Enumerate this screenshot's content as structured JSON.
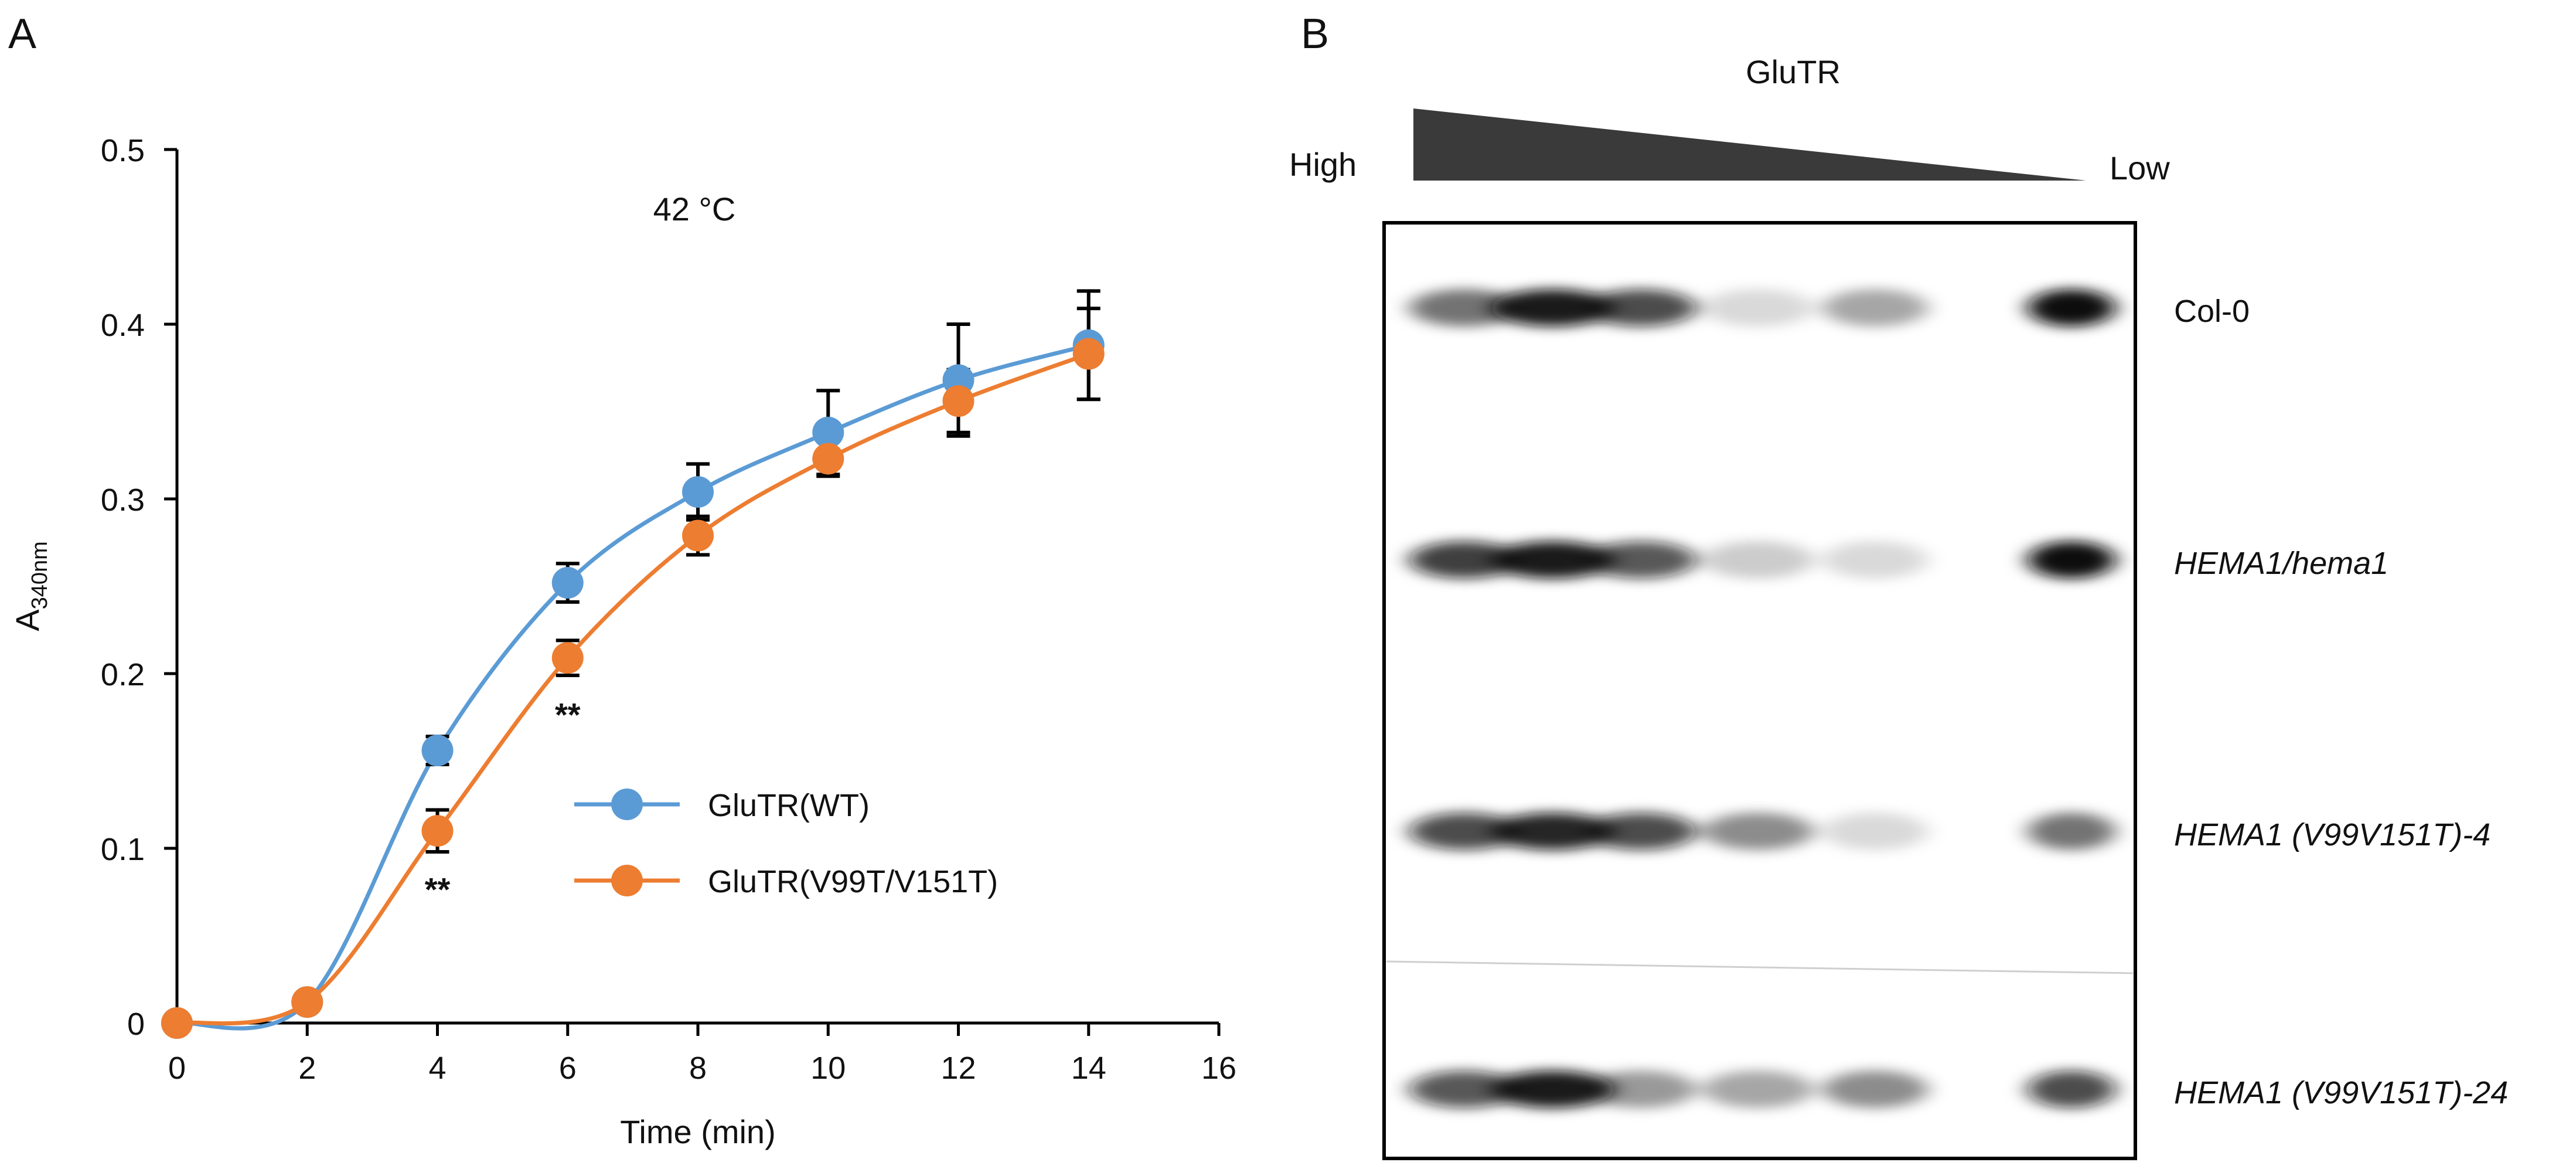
{
  "panels": {
    "a_label": "A",
    "b_label": "B"
  },
  "colors": {
    "wt": "#5b9bd5",
    "mut": "#ed7d31",
    "axis": "#000000",
    "gel_band": "#0a0a0a"
  },
  "chart_data": {
    "type": "line",
    "title": "42 °C",
    "xlabel": "Time (min)",
    "ylabel_main": "A",
    "ylabel_sub": "340nm",
    "xlim": [
      0,
      16
    ],
    "ylim": [
      0,
      0.5
    ],
    "xticks": [
      "0",
      "2",
      "4",
      "6",
      "8",
      "10",
      "12",
      "14",
      "16"
    ],
    "yticks": [
      "0",
      "0.1",
      "0.2",
      "0.3",
      "0.4",
      "0.5"
    ],
    "grid": false,
    "legend_position": "center-right",
    "x": [
      0,
      2,
      4,
      6,
      8,
      10,
      12,
      14
    ],
    "series": [
      {
        "name": "GluTR(WT)",
        "color": "#5b9bd5",
        "values": [
          0.0,
          0.012,
          0.156,
          0.252,
          0.304,
          0.338,
          0.368,
          0.388
        ],
        "errors": [
          0,
          0,
          0.008,
          0.011,
          0.016,
          0.024,
          0.032,
          0.031
        ]
      },
      {
        "name": "GluTR(V99T/V151T)",
        "color": "#ed7d31",
        "values": [
          0.0,
          0.012,
          0.11,
          0.209,
          0.279,
          0.323,
          0.356,
          0.383
        ],
        "errors": [
          0,
          0,
          0.012,
          0.01,
          0.011,
          0.01,
          0.018,
          0.026
        ]
      }
    ],
    "annotations": [
      {
        "text": "**",
        "x": 6,
        "y": 0.17
      },
      {
        "text": "**",
        "x": 4,
        "y": 0.07
      }
    ]
  },
  "gel": {
    "gradient_label": "GluTR",
    "high_label": "High",
    "low_label": "Low",
    "rows": [
      {
        "label": "Col-0",
        "italic": false,
        "intensities": [
          0.55,
          0.95,
          0.75,
          0.15,
          0.35,
          1.0
        ]
      },
      {
        "label": "HEMA1/hema1",
        "italic": true,
        "intensities": [
          0.8,
          0.95,
          0.7,
          0.2,
          0.15,
          1.0
        ]
      },
      {
        "label": "HEMA1 (V99V151T)-4",
        "italic": true,
        "intensities": [
          0.75,
          0.9,
          0.75,
          0.45,
          0.15,
          0.55
        ]
      },
      {
        "label": "HEMA1 (V99V151T)-24",
        "italic": true,
        "intensities": [
          0.7,
          0.95,
          0.4,
          0.35,
          0.45,
          0.75
        ]
      }
    ]
  }
}
